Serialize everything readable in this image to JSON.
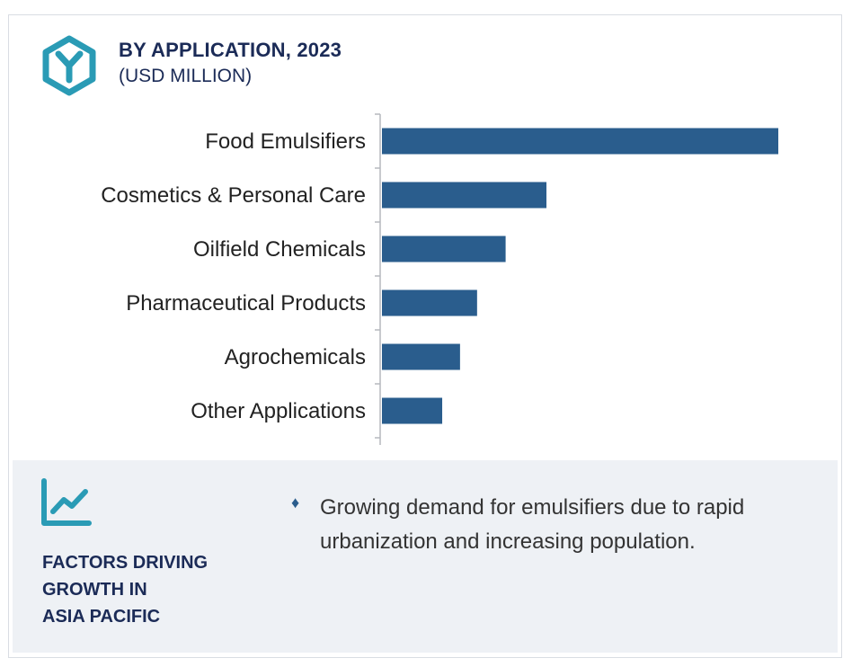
{
  "header": {
    "title": "BY APPLICATION, 2023",
    "subtitle": "(USD MILLION)",
    "icon": "hexagon-y-icon"
  },
  "chart_data": {
    "type": "bar",
    "orientation": "horizontal",
    "categories": [
      "Food Emulsifiers",
      "Cosmetics & Personal Care",
      "Oilfield Chemicals",
      "Pharmaceutical Products",
      "Agrochemicals",
      "Other Applications"
    ],
    "values": [
      100,
      41.5,
      31.2,
      24,
      19.7,
      15.2
    ],
    "xlim": [
      0,
      100
    ],
    "bar_color": "#2a5d8d",
    "grid": false,
    "title": "",
    "xlabel": "",
    "ylabel": ""
  },
  "factors": {
    "icon": "trend-chart-icon",
    "heading_lines": [
      "FACTORS DRIVING",
      "GROWTH IN",
      "ASIA PACIFIC"
    ],
    "bullets": [
      "Growing demand for emulsifiers due to rapid urbanization and increasing population."
    ]
  },
  "colors": {
    "accent": "#2a9bb5",
    "bar": "#2a5d8d",
    "heading": "#1b2b57",
    "panel_bg": "#eef1f5"
  }
}
